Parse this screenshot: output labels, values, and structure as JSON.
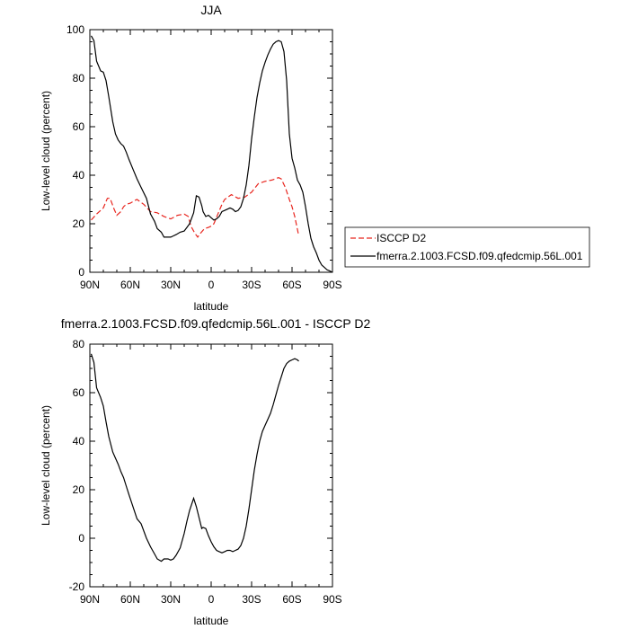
{
  "chart_data": [
    {
      "type": "line",
      "title": "JJA",
      "xlabel": "latitude",
      "ylabel": "Low-level cloud (percent)",
      "xlim": [
        90,
        -90
      ],
      "ylim": [
        0,
        100
      ],
      "xtick_values": [
        90,
        60,
        30,
        0,
        -30,
        -60,
        -90
      ],
      "xtick_labels": [
        "90N",
        "60N",
        "30N",
        "0",
        "30S",
        "60S",
        "90S"
      ],
      "ytick_values": [
        0,
        20,
        40,
        60,
        80,
        100
      ],
      "ytick_labels": [
        "0",
        "20",
        "40",
        "60",
        "80",
        "100"
      ],
      "legend_position": "right",
      "series": [
        {
          "name": "ISCCP D2",
          "color": "#e8261f",
          "dash": "dashed",
          "x": [
            89,
            85,
            80,
            77,
            75,
            72,
            70,
            67,
            65,
            63,
            60,
            57,
            55,
            50,
            45,
            40,
            35,
            30,
            25,
            20,
            17,
            15,
            12,
            10,
            8,
            5,
            2,
            0,
            -2,
            -5,
            -8,
            -10,
            -15,
            -20,
            -25,
            -30,
            -35,
            -40,
            -45,
            -50,
            -52,
            -55,
            -58,
            -60,
            -62,
            -65
          ],
          "y": [
            21.5,
            24,
            26.5,
            30.5,
            30.5,
            26,
            23.5,
            25,
            27,
            28,
            28.5,
            29.5,
            30,
            28,
            25,
            24.5,
            23,
            22,
            23.5,
            24,
            23,
            19,
            16,
            14.5,
            16,
            18,
            18.5,
            19,
            20,
            24,
            28,
            30,
            32,
            30.5,
            31,
            33,
            36.5,
            37.5,
            38,
            39,
            38.5,
            35,
            30,
            27,
            23,
            15
          ]
        },
        {
          "name": "fmerra.2.1003.FCSD.f09.qfedcmip.56L.001",
          "color": "#000000",
          "dash": "solid",
          "x": [
            89,
            87,
            85,
            82,
            80,
            78,
            76,
            73,
            71,
            69,
            67,
            65,
            63,
            61,
            58,
            55,
            52,
            48,
            45,
            42,
            40,
            37,
            35,
            32,
            30,
            28,
            26,
            23,
            20,
            18,
            16,
            13,
            11,
            9,
            7,
            6,
            4,
            2,
            0,
            -2,
            -4,
            -6,
            -8,
            -10,
            -12,
            -14,
            -16,
            -18,
            -20,
            -22,
            -24,
            -26,
            -28,
            -30,
            -32,
            -34,
            -36,
            -38,
            -40,
            -42,
            -44,
            -46,
            -48,
            -50,
            -52,
            -54,
            -56,
            -58,
            -60,
            -62,
            -64,
            -66,
            -68,
            -70,
            -72,
            -74,
            -76,
            -78,
            -80,
            -82,
            -84,
            -86,
            -88,
            -90
          ],
          "y": [
            97.5,
            95.5,
            87,
            83,
            82.5,
            79,
            72.5,
            62,
            57,
            54.5,
            53,
            52,
            49.5,
            46.5,
            42.5,
            38.5,
            35,
            30.5,
            24,
            21,
            18,
            16.5,
            14.5,
            14.5,
            14.5,
            15,
            15.5,
            16.5,
            17,
            18.5,
            20,
            24.5,
            31.5,
            31,
            27.5,
            25,
            23,
            23.5,
            22.5,
            21.5,
            22,
            23,
            25,
            25.5,
            26,
            26.5,
            26,
            25,
            25.5,
            27,
            30.5,
            36,
            44,
            55,
            64,
            72,
            78,
            83,
            86.5,
            89.5,
            92,
            94,
            95,
            95.5,
            95,
            91,
            79,
            57,
            47,
            43,
            38,
            36,
            33,
            27,
            20,
            14,
            10.5,
            8,
            5,
            3,
            2,
            1,
            0.5,
            0
          ],
          "x_clip_note": ""
        }
      ]
    },
    {
      "type": "line",
      "title": "fmerra.2.1003.FCSD.f09.qfedcmip.56L.001 - ISCCP D2",
      "xlabel": "latitude",
      "ylabel": "Low-level cloud (percent)",
      "xlim": [
        90,
        -90
      ],
      "ylim": [
        -20,
        80
      ],
      "xtick_values": [
        90,
        60,
        30,
        0,
        -30,
        -60,
        -90
      ],
      "xtick_labels": [
        "90N",
        "60N",
        "30N",
        "0",
        "30S",
        "60S",
        "90S"
      ],
      "ytick_values": [
        -20,
        0,
        20,
        40,
        60,
        80
      ],
      "ytick_labels": [
        "-20",
        "0",
        "20",
        "40",
        "60",
        "80"
      ],
      "series": [
        {
          "name": "",
          "color": "#000000",
          "dash": "solid",
          "x": [
            89,
            87,
            85,
            82,
            80,
            78,
            76,
            73,
            71,
            69,
            67,
            65,
            63,
            61,
            58,
            55,
            52,
            48,
            45,
            42,
            40,
            37,
            35,
            32,
            30,
            28,
            26,
            23,
            20,
            18,
            16,
            13,
            11,
            9,
            7,
            6,
            4,
            2,
            0,
            -2,
            -4,
            -6,
            -8,
            -10,
            -12,
            -14,
            -16,
            -18,
            -20,
            -22,
            -24,
            -26,
            -28,
            -30,
            -32,
            -34,
            -36,
            -38,
            -40,
            -42,
            -44,
            -46,
            -48,
            -50,
            -52,
            -54,
            -56,
            -58,
            -60,
            -62,
            -64,
            -65
          ],
          "y": [
            76,
            72.5,
            62,
            58,
            54.5,
            48,
            42,
            35.5,
            33,
            30.5,
            27.5,
            25,
            21.5,
            18,
            13,
            8,
            6,
            0,
            -3.5,
            -6.5,
            -8.5,
            -9.5,
            -8.5,
            -8.5,
            -9,
            -8.5,
            -7,
            -4,
            2,
            7,
            11.5,
            16.5,
            13,
            8.5,
            4,
            4.5,
            4,
            1,
            -1.5,
            -3.5,
            -5,
            -5.5,
            -6,
            -5.5,
            -5,
            -5,
            -5.5,
            -5,
            -4.5,
            -3,
            0,
            5,
            12,
            20,
            28,
            34.5,
            40,
            44,
            46.5,
            49,
            51.5,
            55,
            59,
            63,
            66.5,
            70,
            72,
            73,
            73.5,
            74,
            73.5,
            73
          ]
        }
      ]
    }
  ]
}
